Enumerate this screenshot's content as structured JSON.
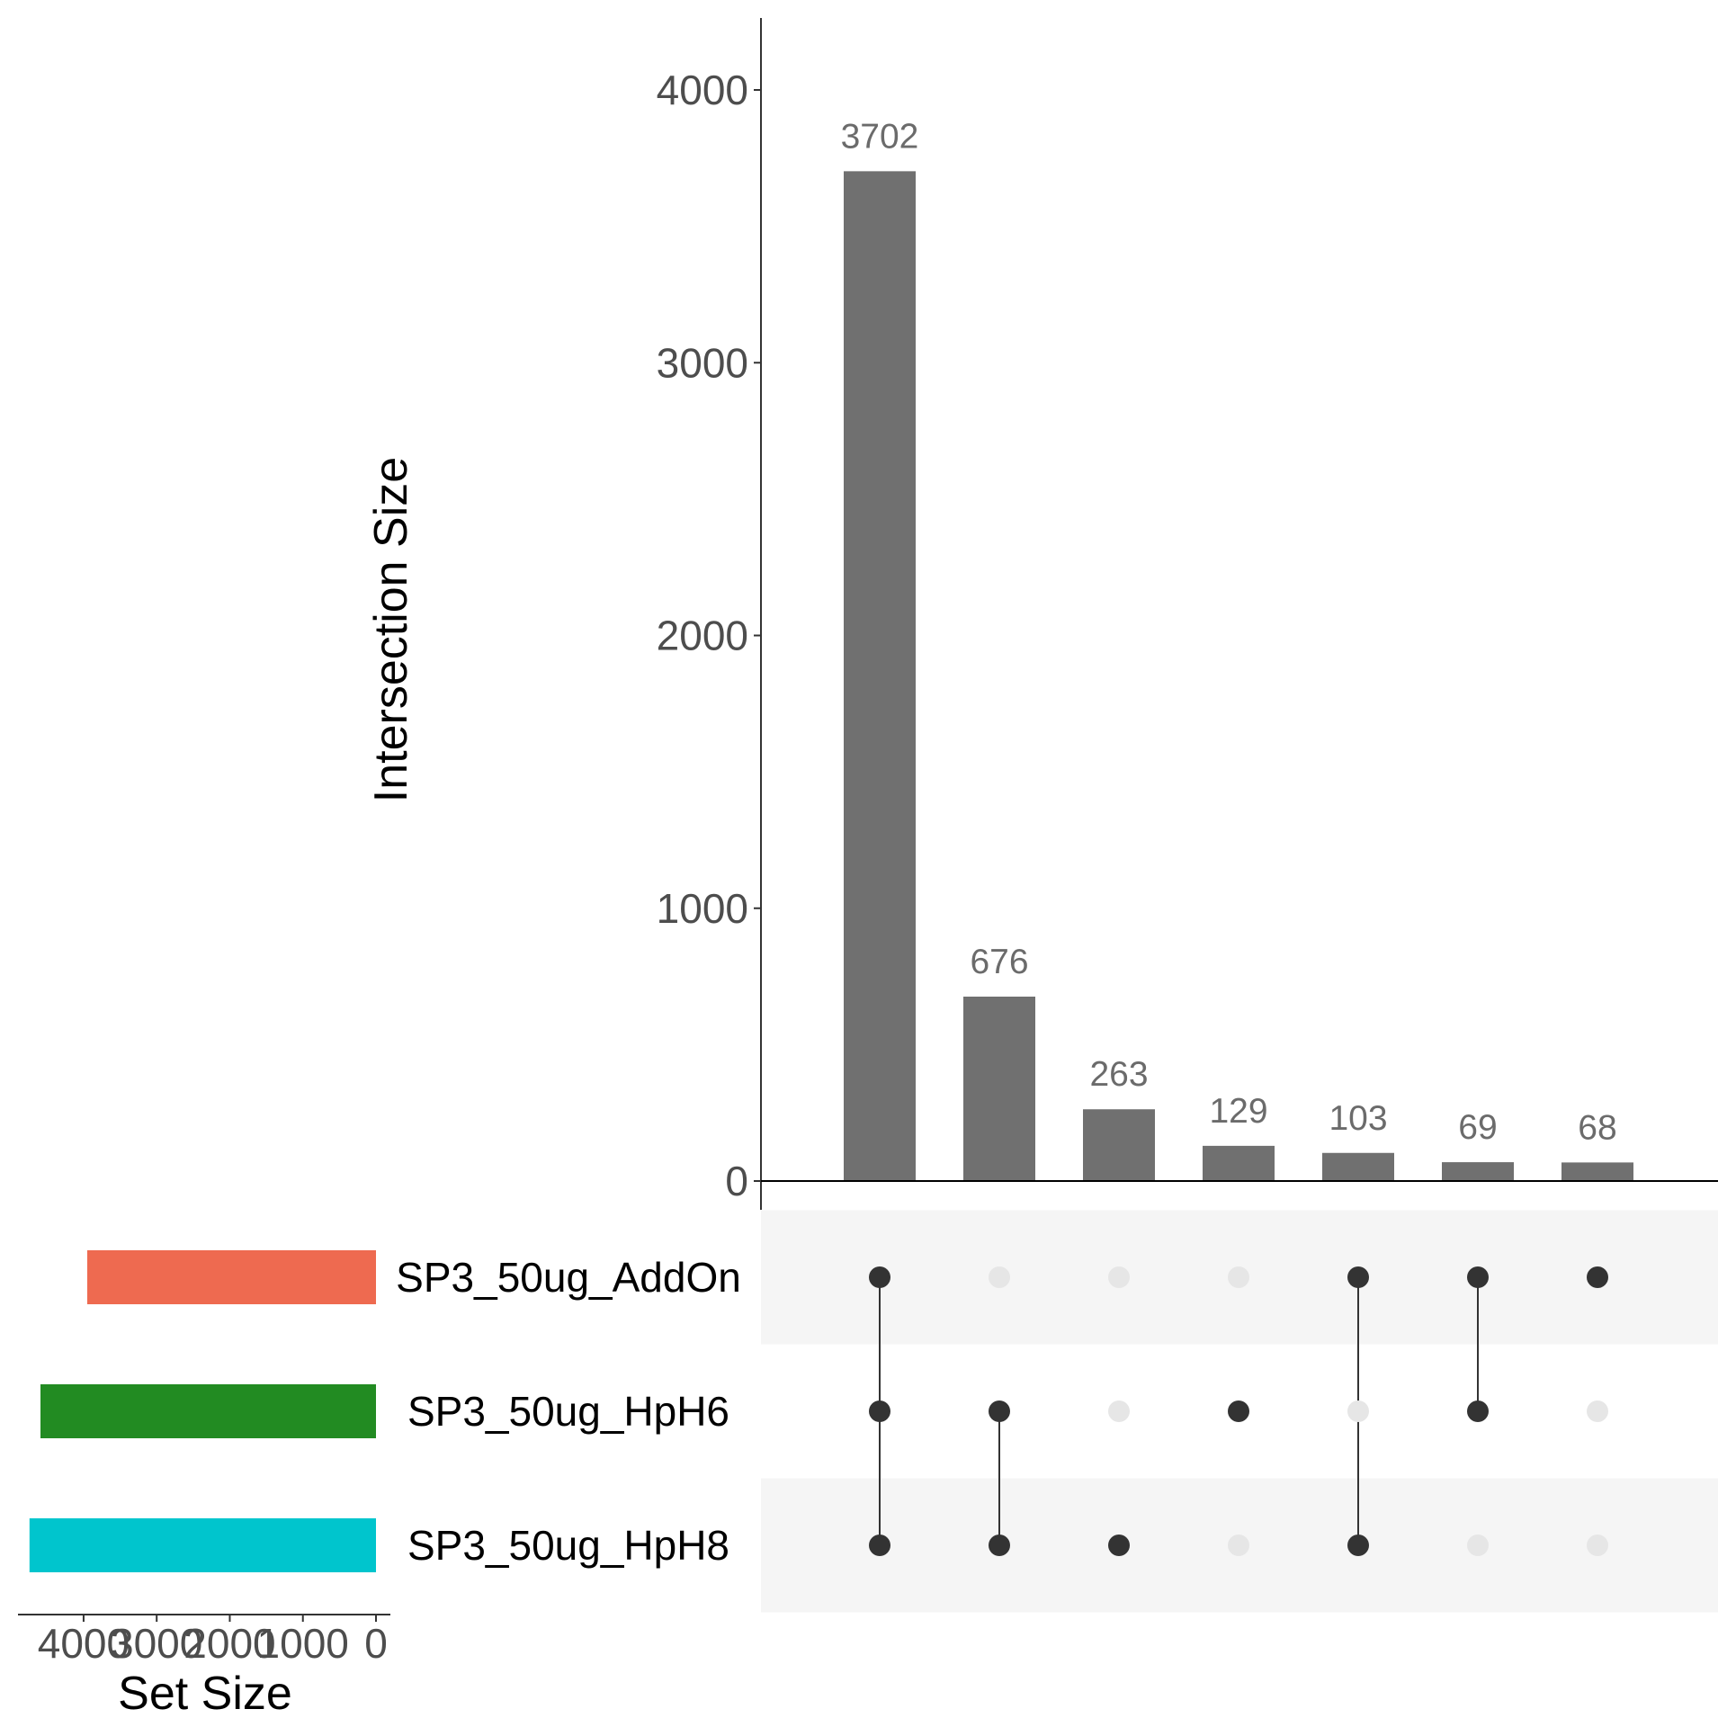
{
  "chart_data": {
    "type": "bar",
    "title": "",
    "ylabel": "Intersection Size",
    "set_size_label": "Set Size",
    "ylim": [
      0,
      4250
    ],
    "y_ticks": [
      0,
      1000,
      2000,
      3000,
      4000
    ],
    "set_size_ticks": [
      4000,
      3000,
      2000,
      1000,
      0
    ],
    "set_size_max": 4700,
    "sets": [
      {
        "name": "SP3_50ug_AddOn",
        "size": 3950,
        "color": "#EE6A50"
      },
      {
        "name": "SP3_50ug_HpH6",
        "size": 4590,
        "color": "#228B22"
      },
      {
        "name": "SP3_50ug_HpH8",
        "size": 4740,
        "color": "#00C5CD"
      }
    ],
    "intersections": [
      {
        "value": 3702,
        "members": [
          0,
          1,
          2
        ]
      },
      {
        "value": 676,
        "members": [
          1,
          2
        ]
      },
      {
        "value": 263,
        "members": [
          2
        ]
      },
      {
        "value": 129,
        "members": [
          1
        ]
      },
      {
        "value": 103,
        "members": [
          0,
          2
        ]
      },
      {
        "value": 69,
        "members": [
          0,
          1
        ]
      },
      {
        "value": 68,
        "members": [
          0
        ]
      }
    ],
    "colors": {
      "bar": "#707070",
      "dot_active": "#333333",
      "dot_inactive": "#e6e6e6",
      "stripe": "#f5f5f5"
    }
  }
}
